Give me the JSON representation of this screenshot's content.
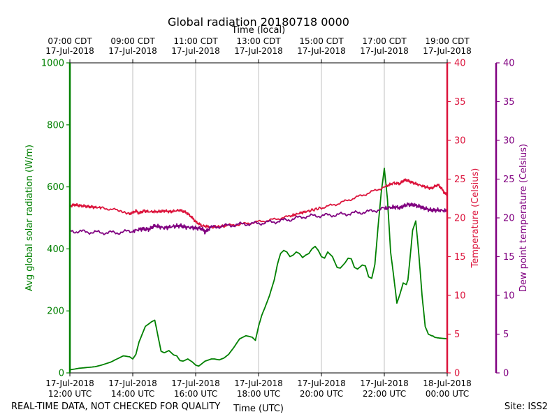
{
  "chart_data": {
    "type": "line",
    "title": "Global radiation 20180718 0000",
    "xlabel_top": "Time (local)",
    "xlabel_bottom": "Time (UTC)",
    "ylabel_left": "Avg global solar radiation (W/m)",
    "ylabel_right1": "Temperature (Celsius)",
    "ylabel_right2": "Dew point temperature (Celsius)",
    "xlim_hours_utc": [
      12,
      24
    ],
    "ylim_left": [
      0,
      1000
    ],
    "ylim_right1": [
      0,
      40
    ],
    "ylim_right2": [
      0,
      40
    ],
    "left_ticks": [
      "0",
      "200",
      "400",
      "600",
      "800",
      "1000"
    ],
    "right1_ticks": [
      "0",
      "5",
      "10",
      "15",
      "20",
      "25",
      "30",
      "35",
      "40"
    ],
    "right2_ticks": [
      "0",
      "5",
      "10",
      "15",
      "20",
      "25",
      "30",
      "35",
      "40"
    ],
    "bottom_ticks": [
      {
        "date": "17-Jul-2018",
        "time": "12:00 UTC"
      },
      {
        "date": "17-Jul-2018",
        "time": "14:00 UTC"
      },
      {
        "date": "17-Jul-2018",
        "time": "16:00 UTC"
      },
      {
        "date": "17-Jul-2018",
        "time": "18:00 UTC"
      },
      {
        "date": "17-Jul-2018",
        "time": "20:00 UTC"
      },
      {
        "date": "17-Jul-2018",
        "time": "22:00 UTC"
      },
      {
        "date": "18-Jul-2018",
        "time": "00:00 UTC"
      }
    ],
    "top_ticks": [
      {
        "time": "07:00 CDT",
        "date": "17-Jul-2018"
      },
      {
        "time": "09:00 CDT",
        "date": "17-Jul-2018"
      },
      {
        "time": "11:00 CDT",
        "date": "17-Jul-2018"
      },
      {
        "time": "13:00 CDT",
        "date": "17-Jul-2018"
      },
      {
        "time": "15:00 CDT",
        "date": "17-Jul-2018"
      },
      {
        "time": "17:00 CDT",
        "date": "17-Jul-2018"
      },
      {
        "time": "19:00 CDT",
        "date": "17-Jul-2018"
      }
    ],
    "grid": "vertical",
    "series": [
      {
        "name": "Avg global solar radiation",
        "color": "#008000",
        "axis": "left",
        "x": [
          12.0,
          12.3,
          12.6,
          12.8,
          13.0,
          13.3,
          13.5,
          13.7,
          13.9,
          14.0,
          14.1,
          14.2,
          14.4,
          14.6,
          14.7,
          14.8,
          14.9,
          15.0,
          15.15,
          15.3,
          15.4,
          15.5,
          15.6,
          15.75,
          15.9,
          16.0,
          16.1,
          16.2,
          16.3,
          16.5,
          16.6,
          16.75,
          16.9,
          17.05,
          17.2,
          17.4,
          17.6,
          17.8,
          17.9,
          18.0,
          18.1,
          18.2,
          18.35,
          18.5,
          18.6,
          18.7,
          18.8,
          18.9,
          19.0,
          19.1,
          19.2,
          19.3,
          19.4,
          19.5,
          19.6,
          19.7,
          19.8,
          19.9,
          20.0,
          20.1,
          20.2,
          20.35,
          20.5,
          20.6,
          20.75,
          20.85,
          20.95,
          21.05,
          21.15,
          21.3,
          21.4,
          21.5,
          21.6,
          21.7,
          21.8,
          21.9,
          22.0,
          22.1,
          22.2,
          22.3,
          22.4,
          22.5,
          22.6,
          22.7,
          22.75,
          22.8,
          22.9,
          23.0,
          23.1,
          23.2,
          23.3,
          23.4,
          23.5,
          23.55,
          23.6,
          23.65,
          23.7,
          23.8,
          23.9,
          24.0
        ],
        "values": [
          10,
          15,
          18,
          20,
          25,
          35,
          45,
          55,
          52,
          45,
          60,
          100,
          150,
          165,
          170,
          120,
          70,
          65,
          72,
          58,
          55,
          40,
          38,
          45,
          35,
          25,
          22,
          30,
          38,
          45,
          45,
          42,
          48,
          60,
          80,
          110,
          120,
          115,
          105,
          150,
          185,
          210,
          250,
          300,
          350,
          385,
          395,
          390,
          375,
          380,
          390,
          385,
          372,
          380,
          385,
          400,
          408,
          395,
          375,
          370,
          390,
          375,
          340,
          338,
          355,
          370,
          368,
          340,
          335,
          348,
          345,
          310,
          305,
          350,
          470,
          580,
          660,
          560,
          390,
          310,
          225,
          255,
          290,
          285,
          300,
          350,
          460,
          490,
          380,
          250,
          150,
          125,
          120,
          119,
          115,
          114,
          113,
          112,
          111,
          110
        ]
      },
      {
        "name": "Temperature",
        "color": "#dc143c",
        "axis": "right1",
        "x": [
          12.0,
          12.15,
          12.3,
          12.5,
          12.7,
          13.0,
          13.5,
          13.9,
          14.1,
          14.2,
          14.35,
          14.5,
          14.8,
          15.0,
          15.2,
          15.5,
          15.7,
          15.9,
          16.0,
          16.2,
          16.5,
          16.8,
          17.0,
          17.5,
          18.0,
          18.5,
          19.0,
          19.3,
          19.6,
          20.0,
          20.5,
          21.0,
          21.5,
          22.0,
          22.3,
          22.5,
          22.6,
          22.7,
          22.8,
          23.0,
          23.3,
          23.5,
          23.7,
          23.8,
          23.9,
          24.0
        ],
        "values": [
          21.5,
          21.7,
          21.6,
          21.5,
          21.4,
          21.3,
          21.0,
          20.5,
          20.9,
          20.6,
          20.9,
          20.8,
          20.8,
          20.9,
          20.8,
          21.0,
          20.7,
          20.0,
          19.5,
          19.0,
          18.8,
          18.9,
          19.0,
          19.2,
          19.5,
          19.8,
          20.2,
          20.6,
          20.9,
          21.3,
          21.8,
          22.5,
          23.2,
          24.0,
          24.5,
          24.4,
          24.8,
          24.9,
          24.7,
          24.4,
          24.0,
          23.8,
          24.3,
          23.9,
          23.3,
          22.9
        ]
      },
      {
        "name": "Dew point temperature",
        "color": "#800080",
        "axis": "right2",
        "x": [
          12.0,
          12.5,
          13.0,
          13.5,
          14.0,
          14.3,
          14.5,
          14.7,
          15.0,
          15.3,
          15.5,
          15.7,
          16.0,
          16.2,
          16.3,
          16.5,
          17.0,
          17.5,
          18.0,
          18.5,
          19.0,
          19.5,
          20.0,
          20.5,
          21.0,
          21.5,
          22.0,
          22.3,
          22.5,
          22.7,
          22.9,
          23.1,
          23.3,
          23.5,
          23.7,
          24.0
        ],
        "values": [
          18.3,
          18.2,
          18.1,
          18.1,
          18.3,
          18.6,
          18.5,
          19.0,
          18.7,
          18.9,
          19.0,
          18.8,
          18.7,
          18.6,
          18.2,
          18.8,
          19.0,
          19.2,
          19.3,
          19.5,
          19.8,
          20.2,
          20.3,
          20.4,
          20.6,
          20.8,
          21.2,
          21.4,
          21.3,
          21.7,
          21.7,
          21.5,
          21.2,
          21.0,
          21.0,
          20.9
        ]
      }
    ]
  },
  "footer": {
    "left": "REAL-TIME DATA, NOT CHECKED FOR QUALITY",
    "right": "Site: ISS2"
  }
}
